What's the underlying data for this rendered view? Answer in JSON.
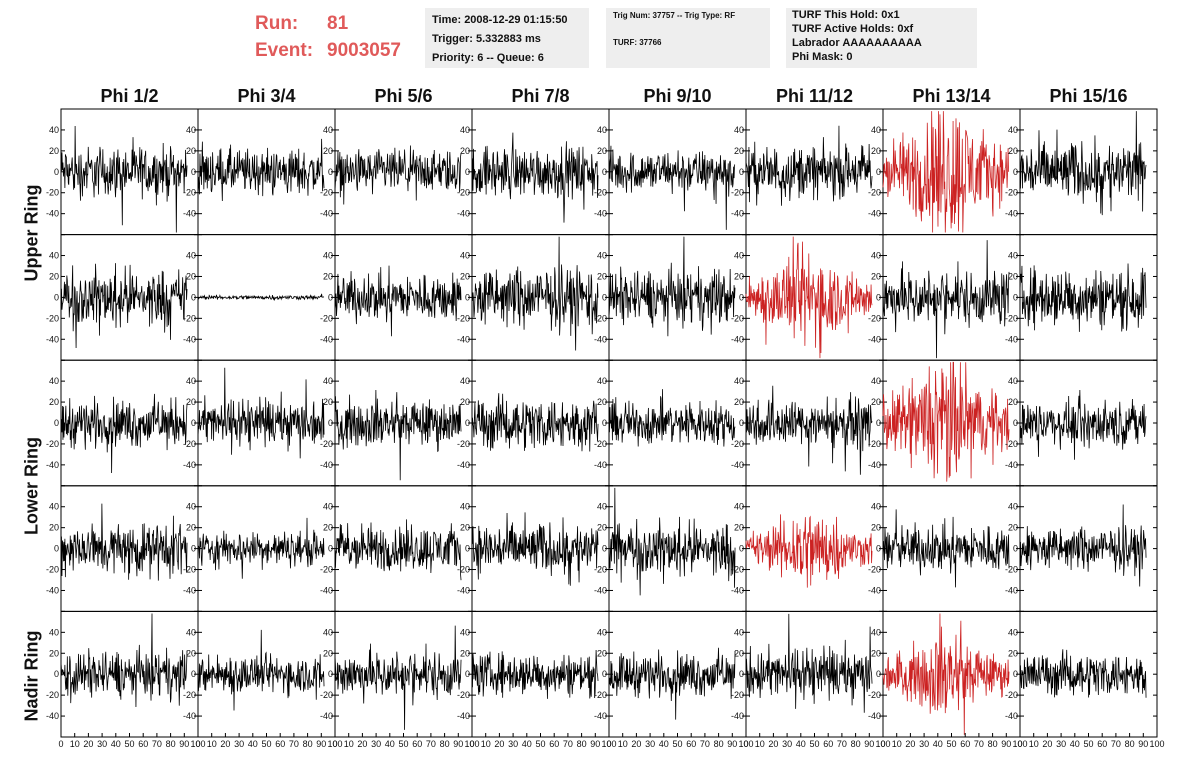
{
  "header": {
    "run_label": "Run:",
    "run_value": "81",
    "event_label": "Event:",
    "event_value": "9003057",
    "time_box": {
      "time": "Time: 2008-12-29 01:15:50",
      "trigger": "Trigger: 5.332883 ms",
      "priority": "Priority: 6 -- Queue: 6"
    },
    "trig_box": {
      "trig": "Trig Num: 37757 -- Trig Type: RF",
      "turf": "TURF: 37766"
    },
    "turf_box": {
      "this_hold": "TURF This Hold: 0x1",
      "active_holds": "TURF Active Holds: 0xf",
      "labrador": "Labrador AAAAAAAAAA",
      "phi_mask": "Phi Mask: 0"
    }
  },
  "colors": {
    "normal_trace": "#000000",
    "triggered_trace": "#cc2222",
    "header_accent": "#e05a5a"
  },
  "chart_data": {
    "type": "line",
    "columns": [
      "Phi 1/2",
      "Phi 3/4",
      "Phi 5/6",
      "Phi 7/8",
      "Phi 9/10",
      "Phi 11/12",
      "Phi 13/14",
      "Phi 15/16"
    ],
    "rows": [
      "Upper Ring",
      "Upper Ring",
      "Lower Ring",
      "Lower Ring",
      "Nadir Ring"
    ],
    "row_labels": [
      "Upper Ring",
      "Lower Ring",
      "Nadir Ring"
    ],
    "ylim": [
      -60,
      60
    ],
    "yticks": [
      -60,
      -40,
      -20,
      0,
      20,
      40,
      60
    ],
    "xlim": [
      0,
      100
    ],
    "xticks": [
      0,
      10,
      20,
      30,
      40,
      50,
      60,
      70,
      80,
      90,
      100
    ],
    "n_samples": 260,
    "panels_amplitude": [
      [
        12,
        11,
        10,
        12,
        10,
        12,
        24,
        14
      ],
      [
        13,
        1,
        11,
        14,
        13,
        17,
        13,
        14
      ],
      [
        11,
        11,
        11,
        12,
        10,
        11,
        23,
        10
      ],
      [
        12,
        8,
        11,
        12,
        12,
        14,
        11,
        10
      ],
      [
        11,
        9,
        11,
        10,
        10,
        12,
        15,
        10
      ]
    ],
    "triggered_panels": [
      [
        0,
        6
      ],
      [
        1,
        5
      ],
      [
        2,
        6
      ],
      [
        3,
        5
      ],
      [
        4,
        6
      ]
    ]
  }
}
